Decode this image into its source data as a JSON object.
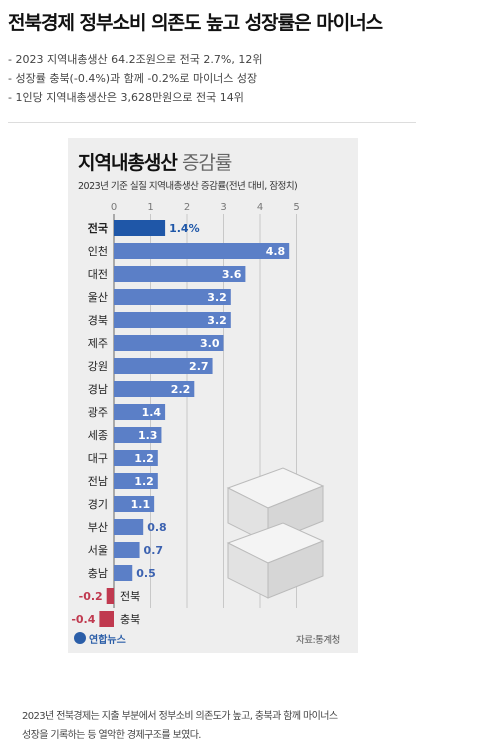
{
  "article": {
    "headline": "전북경제 정부소비 의존도 높고 성장률은 마이너스",
    "summary": [
      "- 2023 지역내총생산 64.2조원으로 전국 2.7%, 12위",
      "- 성장률 충북(-0.4%)과 함께 -0.2%로 마이너스 성장",
      "- 1인당 지역내총생산은 3,628만원으로 전국 14위"
    ],
    "caption_line1": "2023년 전북경제는 지출 부분에서 정부소비 의존도가 높고, 충북과 함께 마이너스",
    "caption_line2": "성장을 기록하는 등 열악한 경제구조를 보였다."
  },
  "chart_text": {
    "title_bold": "지역내총생산",
    "title_light": "증감률",
    "subtitle": "2023년 기준 실질 지역내총생산 증감률(전년 대비, 잠정치)",
    "source": "자료:통계청",
    "logo": "연합뉴스"
  },
  "colors": {
    "positive_bar": "#5b7fc7",
    "highlight_bar": "#1f57a8",
    "negative_bar": "#c0394f",
    "card_bg": "#eeeeee"
  },
  "chart_data": {
    "type": "bar",
    "orientation": "horizontal",
    "title": "지역내총생산 증감률",
    "subtitle": "2023년 기준 실질 지역내총생산 증감률(전년 대비, 잠정치)",
    "xlim": [
      0,
      5
    ],
    "xticks": [
      "0",
      "1",
      "2",
      "3",
      "4",
      "5"
    ],
    "grid": true,
    "categories": [
      "전국",
      "인천",
      "대전",
      "울산",
      "경북",
      "제주",
      "강원",
      "경남",
      "광주",
      "세종",
      "대구",
      "전남",
      "경기",
      "부산",
      "서울",
      "충남",
      "전북",
      "충북"
    ],
    "values": [
      1.4,
      4.8,
      3.6,
      3.2,
      3.2,
      3.0,
      2.7,
      2.2,
      1.4,
      1.3,
      1.2,
      1.2,
      1.1,
      0.8,
      0.7,
      0.5,
      -0.2,
      -0.4
    ],
    "value_labels": [
      "1.4%",
      "4.8",
      "3.6",
      "3.2",
      "3.2",
      "3.0",
      "2.7",
      "2.2",
      "1.4",
      "1.3",
      "1.2",
      "1.2",
      "1.1",
      "0.8",
      "0.7",
      "0.5",
      "-0.2",
      "-0.4"
    ],
    "highlight": "전국"
  }
}
